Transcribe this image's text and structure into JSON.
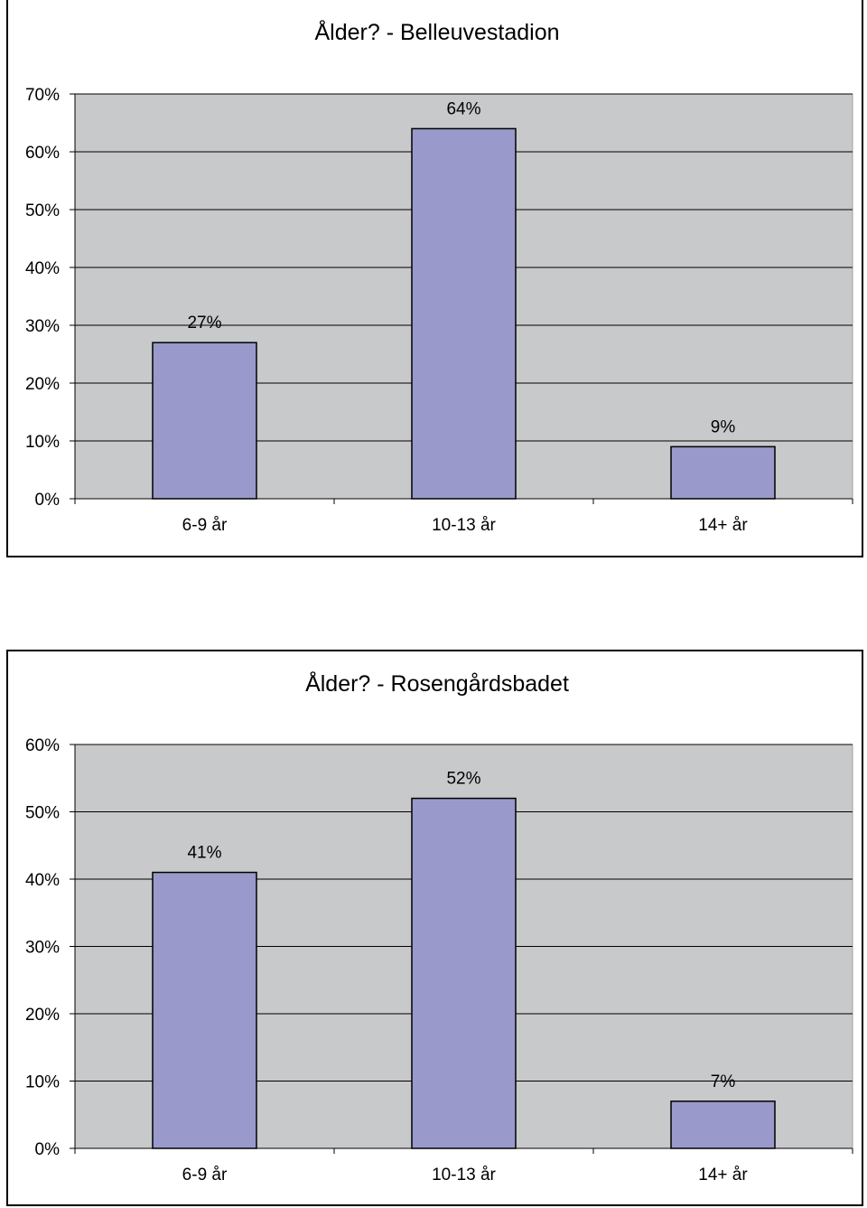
{
  "chart_data": [
    {
      "type": "bar",
      "title": "Ålder? - Belleuvestadion",
      "categories": [
        "6-9 år",
        "10-13 år",
        "14+ år"
      ],
      "values": [
        27,
        64,
        9
      ],
      "data_labels": [
        "27%",
        "64%",
        "9%"
      ],
      "ylim": [
        0,
        70
      ],
      "yticks": [
        "0%",
        "10%",
        "20%",
        "30%",
        "40%",
        "50%",
        "60%",
        "70%"
      ],
      "grid": true,
      "legend": "none",
      "colors": {
        "bar": "#9999cc",
        "plot_bg": "#c8c9cb",
        "grid": "#000000"
      }
    },
    {
      "type": "bar",
      "title": "Ålder? - Rosengårdsbadet",
      "categories": [
        "6-9 år",
        "10-13 år",
        "14+ år"
      ],
      "values": [
        41,
        52,
        7
      ],
      "data_labels": [
        "41%",
        "52%",
        "7%"
      ],
      "ylim": [
        0,
        60
      ],
      "yticks": [
        "0%",
        "10%",
        "20%",
        "30%",
        "40%",
        "50%",
        "60%"
      ],
      "grid": true,
      "legend": "none",
      "colors": {
        "bar": "#9999cc",
        "plot_bg": "#c8c9cb",
        "grid": "#000000"
      }
    }
  ]
}
